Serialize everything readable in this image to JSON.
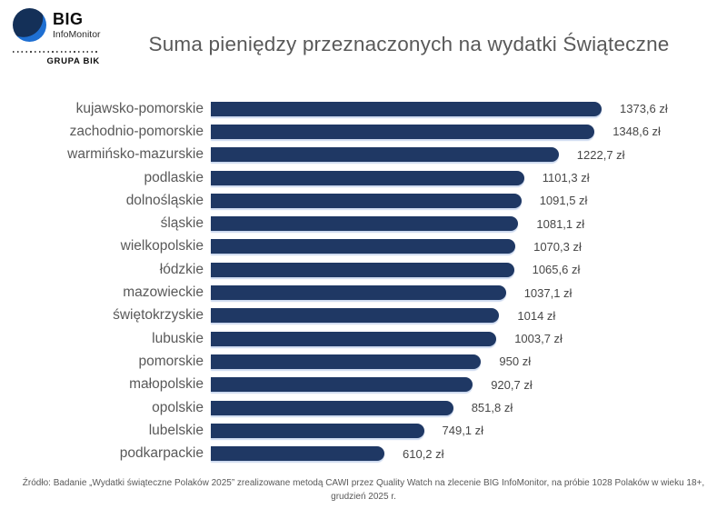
{
  "logo": {
    "big": "BIG",
    "infomonitor": "InfoMonitor",
    "grupa": "GRUPA BIK",
    "circle_dark_blue": "#143058",
    "circle_light_blue": "#1e6fd2"
  },
  "title": "Suma pieniędzy przeznaczonych na wydatki Świąteczne",
  "footer": "Źródło: Badanie „Wydatki świąteczne Polaków 2025” zrealizowane metodą CAWI przez Quality Watch na zlecenie BIG InfoMonitor, na próbie 1028 Polaków w wieku 18+, grudzień 2025 r.",
  "chart_data": {
    "type": "bar",
    "orientation": "horizontal",
    "title": "Suma pieniędzy przeznaczonych na wydatki Świąteczne",
    "unit": "zł",
    "bar_color": "#1f3864",
    "value_axis_visible": false,
    "grid": false,
    "xlim": [
      0,
      1400
    ],
    "categories": [
      "kujawsko-pomorskie",
      "zachodnio-pomorskie",
      "warmińsko-mazurskie",
      "podlaskie",
      "dolnośląskie",
      "śląskie",
      "wielkopolskie",
      "łódzkie",
      "mazowieckie",
      "świętokrzyskie",
      "lubuskie",
      "pomorskie",
      "małopolskie",
      "opolskie",
      "lubelskie",
      "podkarpackie"
    ],
    "values": [
      1373.6,
      1348.6,
      1222.7,
      1101.3,
      1091.5,
      1081.1,
      1070.3,
      1065.6,
      1037.1,
      1014,
      1003.7,
      950,
      920.7,
      851.8,
      749.1,
      610.2
    ],
    "value_labels": [
      "1373,6 zł",
      "1348,6 zł",
      "1222,7 zł",
      "1101,3 zł",
      "1091,5 zł",
      "1081,1 zł",
      "1070,3 zł",
      "1065,6 zł",
      "1037,1 zł",
      "1014 zł",
      "1003,7 zł",
      "950 zł",
      "920,7 zł",
      "851,8 zł",
      "749,1 zł",
      "610,2 zł"
    ]
  }
}
